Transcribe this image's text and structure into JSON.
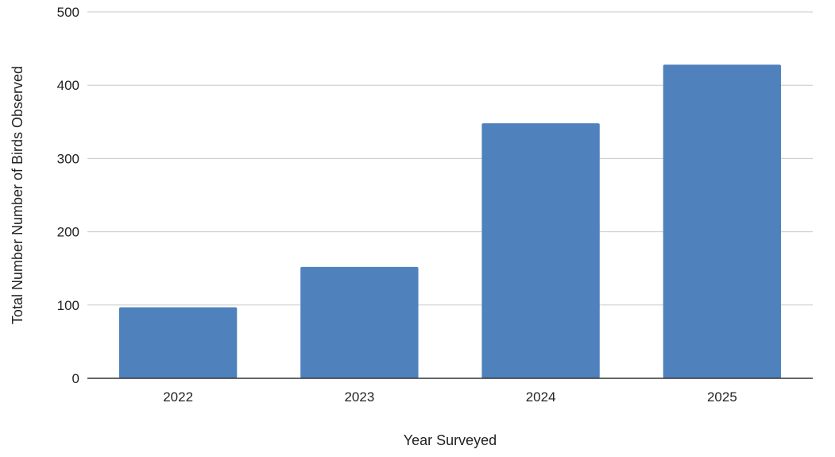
{
  "chart_data": {
    "type": "bar",
    "categories": [
      "2022",
      "2023",
      "2024",
      "2025"
    ],
    "values": [
      97,
      152,
      348,
      428
    ],
    "title": "",
    "xlabel": "Year Surveyed",
    "ylabel": "Total Number Number of Birds Observed",
    "ylim": [
      0,
      500
    ],
    "yticks": [
      0,
      100,
      200,
      300,
      400,
      500
    ],
    "grid": true,
    "legend": "none",
    "colors": {
      "bar": "#4f81bd",
      "grid": "#c8c8c8",
      "axis": "#333333",
      "text": "#222222"
    }
  }
}
